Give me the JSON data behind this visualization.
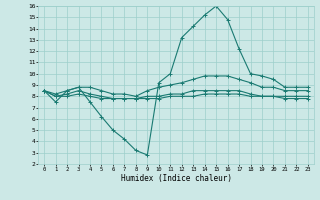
{
  "xlabel": "Humidex (Indice chaleur)",
  "ylabel": "",
  "bg_color": "#cce8e6",
  "grid_color": "#9ecfcb",
  "line_color": "#1a7a72",
  "xlim": [
    -0.5,
    23.5
  ],
  "ylim": [
    2,
    16
  ],
  "xticks": [
    0,
    1,
    2,
    3,
    4,
    5,
    6,
    7,
    8,
    9,
    10,
    11,
    12,
    13,
    14,
    15,
    16,
    17,
    18,
    19,
    20,
    21,
    22,
    23
  ],
  "yticks": [
    2,
    3,
    4,
    5,
    6,
    7,
    8,
    9,
    10,
    11,
    12,
    13,
    14,
    15,
    16
  ],
  "line1_x": [
    0,
    1,
    2,
    3,
    4,
    5,
    6,
    7,
    8,
    9,
    10,
    11,
    12,
    13,
    14,
    15,
    16,
    17,
    18,
    19,
    20,
    21,
    22,
    23
  ],
  "line1_y": [
    8.5,
    7.5,
    8.5,
    8.8,
    7.5,
    6.2,
    5.0,
    4.2,
    3.2,
    2.8,
    9.2,
    10.0,
    13.2,
    14.2,
    15.2,
    16.0,
    14.8,
    12.2,
    10.0,
    9.8,
    9.5,
    8.8,
    8.8,
    8.8
  ],
  "line2_x": [
    0,
    1,
    2,
    3,
    4,
    5,
    6,
    7,
    8,
    9,
    10,
    11,
    12,
    13,
    14,
    15,
    16,
    17,
    18,
    19,
    20,
    21,
    22,
    23
  ],
  "line2_y": [
    8.5,
    8.2,
    8.5,
    8.8,
    8.8,
    8.5,
    8.2,
    8.2,
    8.0,
    8.5,
    8.8,
    9.0,
    9.2,
    9.5,
    9.8,
    9.8,
    9.8,
    9.5,
    9.2,
    8.8,
    8.8,
    8.5,
    8.5,
    8.5
  ],
  "line3_x": [
    0,
    1,
    2,
    3,
    4,
    5,
    6,
    7,
    8,
    9,
    10,
    11,
    12,
    13,
    14,
    15,
    16,
    17,
    18,
    19,
    20,
    21,
    22,
    23
  ],
  "line3_y": [
    8.5,
    8.0,
    8.2,
    8.5,
    8.2,
    8.0,
    7.8,
    7.8,
    7.8,
    8.0,
    8.0,
    8.2,
    8.2,
    8.5,
    8.5,
    8.5,
    8.5,
    8.5,
    8.2,
    8.0,
    8.0,
    8.0,
    8.0,
    8.0
  ],
  "line4_x": [
    0,
    1,
    2,
    3,
    4,
    5,
    6,
    7,
    8,
    9,
    10,
    11,
    12,
    13,
    14,
    15,
    16,
    17,
    18,
    19,
    20,
    21,
    22,
    23
  ],
  "line4_y": [
    8.5,
    8.0,
    8.0,
    8.2,
    8.0,
    7.8,
    7.8,
    7.8,
    7.8,
    7.8,
    7.8,
    8.0,
    8.0,
    8.0,
    8.2,
    8.2,
    8.2,
    8.2,
    8.0,
    8.0,
    8.0,
    7.8,
    7.8,
    7.8
  ]
}
